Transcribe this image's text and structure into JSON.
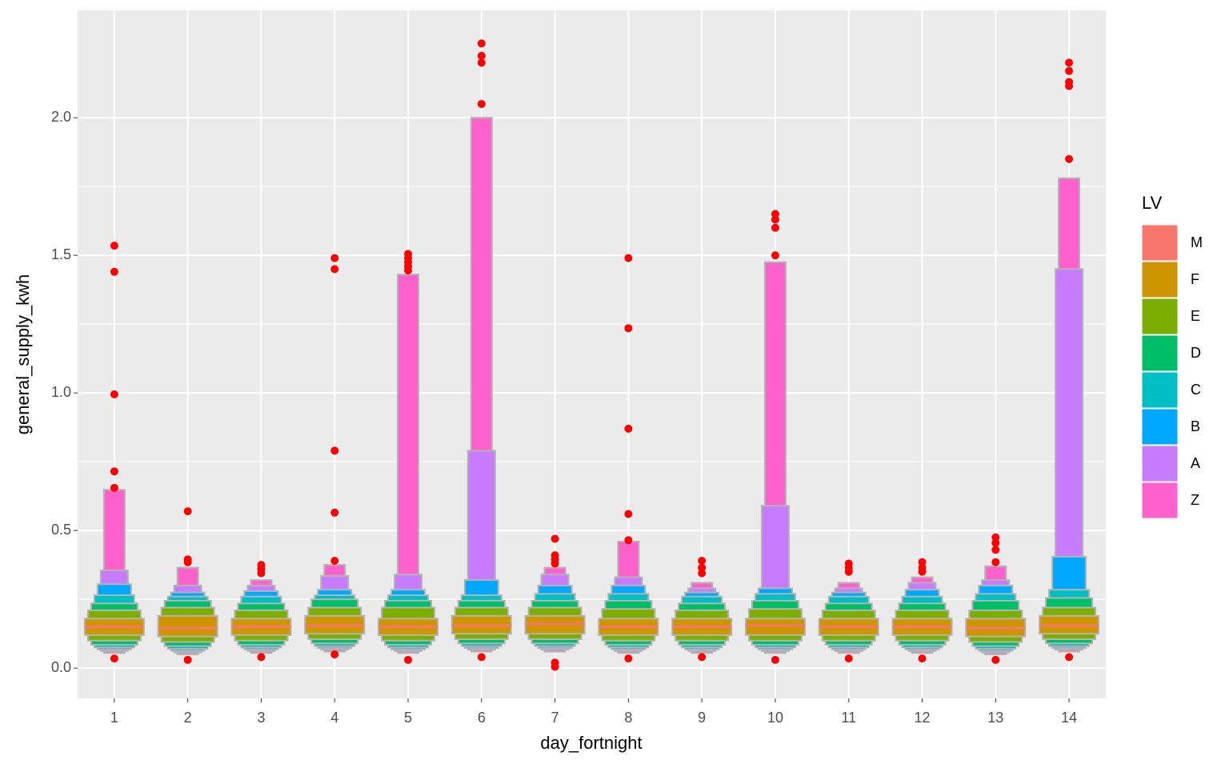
{
  "chart_data": {
    "type": "lvplot",
    "x_label": "day_fortnight",
    "y_label": "general_supply_kwh",
    "categories": [
      "1",
      "2",
      "3",
      "4",
      "5",
      "6",
      "7",
      "8",
      "9",
      "10",
      "11",
      "12",
      "13",
      "14"
    ],
    "ylim": [
      -0.11,
      2.39
    ],
    "yticks": [
      {
        "value": 0,
        "label": "0.0"
      },
      0.5,
      {
        "value": 1,
        "label": "1.0"
      },
      1.5,
      {
        "value": 2,
        "label": "2.0"
      }
    ],
    "grid": true,
    "legend_title": "LV",
    "legend_position": "right",
    "box_stroke": "#b3b3b3",
    "series": [
      {
        "name": "M",
        "color": "#F8766D",
        "values": [
          0.15,
          0.145,
          0.15,
          0.155,
          0.15,
          0.155,
          0.16,
          0.15,
          0.15,
          0.155,
          0.15,
          0.15,
          0.145,
          0.155
        ]
      },
      {
        "name": "F",
        "color": "#CD9600",
        "upper": [
          0.18,
          0.19,
          0.18,
          0.19,
          0.18,
          0.19,
          0.19,
          0.18,
          0.18,
          0.18,
          0.18,
          0.18,
          0.18,
          0.19
        ],
        "lower": [
          0.12,
          0.115,
          0.12,
          0.125,
          0.12,
          0.125,
          0.125,
          0.12,
          0.12,
          0.12,
          0.12,
          0.12,
          0.115,
          0.125
        ]
      },
      {
        "name": "E",
        "color": "#7CAE00",
        "upper": [
          0.21,
          0.22,
          0.21,
          0.22,
          0.22,
          0.22,
          0.22,
          0.215,
          0.21,
          0.215,
          0.21,
          0.21,
          0.21,
          0.22
        ],
        "lower": [
          0.1,
          0.095,
          0.1,
          0.105,
          0.1,
          0.105,
          0.105,
          0.1,
          0.1,
          0.1,
          0.1,
          0.1,
          0.095,
          0.105
        ]
      },
      {
        "name": "D",
        "color": "#00BE67",
        "upper": [
          0.235,
          0.245,
          0.235,
          0.25,
          0.245,
          0.245,
          0.245,
          0.245,
          0.235,
          0.245,
          0.235,
          0.235,
          0.245,
          0.255
        ],
        "lower": [
          0.085,
          0.08,
          0.085,
          0.09,
          0.085,
          0.09,
          0.09,
          0.085,
          0.085,
          0.085,
          0.085,
          0.085,
          0.08,
          0.09
        ]
      },
      {
        "name": "C",
        "color": "#00BFC4",
        "upper": [
          0.265,
          0.26,
          0.26,
          0.265,
          0.265,
          0.265,
          0.27,
          0.27,
          0.26,
          0.27,
          0.26,
          0.26,
          0.27,
          0.285
        ],
        "lower": [
          0.075,
          0.07,
          0.075,
          0.08,
          0.075,
          0.08,
          0.08,
          0.075,
          0.075,
          0.075,
          0.075,
          0.075,
          0.07,
          0.08
        ]
      },
      {
        "name": "B",
        "color": "#00A9FF",
        "upper": [
          0.305,
          0.275,
          0.28,
          0.285,
          0.285,
          0.32,
          0.3,
          0.3,
          0.275,
          0.29,
          0.275,
          0.285,
          0.3,
          0.405
        ],
        "lower": [
          0.068,
          0.063,
          0.068,
          0.073,
          0.068,
          0.073,
          0.073,
          0.068,
          0.068,
          0.068,
          0.068,
          0.068,
          0.063,
          0.073
        ]
      },
      {
        "name": "A",
        "color": "#C77CFF",
        "upper": [
          0.355,
          0.3,
          0.3,
          0.335,
          0.34,
          0.79,
          0.34,
          0.33,
          0.29,
          0.59,
          0.29,
          0.31,
          0.32,
          1.45
        ],
        "lower": [
          0.062,
          0.057,
          0.062,
          0.067,
          0.062,
          0.067,
          0.067,
          0.062,
          0.062,
          0.062,
          0.062,
          0.062,
          0.057,
          0.067
        ]
      },
      {
        "name": "Z",
        "color": "#FF61CC",
        "upper": [
          0.648,
          0.365,
          0.32,
          0.375,
          1.43,
          2.0,
          0.365,
          0.46,
          0.31,
          1.475,
          0.31,
          0.33,
          0.37,
          1.78
        ],
        "lower": [
          0.055,
          0.05,
          0.055,
          0.06,
          0.055,
          0.06,
          0.06,
          0.055,
          0.055,
          0.055,
          0.055,
          0.055,
          0.05,
          0.06
        ]
      }
    ],
    "outlier_color": "#ff0000",
    "outliers": [
      [
        1.535,
        1.44,
        0.995,
        0.715,
        0.655,
        0.035
      ],
      [
        0.57,
        0.395,
        0.385,
        0.03
      ],
      [
        0.375,
        0.36,
        0.345,
        0.04
      ],
      [
        1.49,
        1.45,
        0.79,
        0.565,
        0.39,
        0.05
      ],
      [
        1.505,
        1.49,
        1.475,
        1.46,
        1.445,
        0.03
      ],
      [
        2.27,
        2.225,
        2.2,
        2.05,
        0.04
      ],
      [
        0.47,
        0.41,
        0.395,
        0.38,
        0.02,
        0.005
      ],
      [
        1.49,
        1.235,
        0.87,
        0.56,
        0.465,
        0.035
      ],
      [
        0.39,
        0.365,
        0.345,
        0.04
      ],
      [
        1.65,
        1.63,
        1.6,
        1.5,
        0.03
      ],
      [
        0.38,
        0.365,
        0.35,
        0.035
      ],
      [
        0.385,
        0.365,
        0.35,
        0.035
      ],
      [
        0.475,
        0.455,
        0.43,
        0.385,
        0.03
      ],
      [
        2.2,
        2.17,
        2.13,
        2.115,
        1.85,
        0.04
      ]
    ]
  }
}
